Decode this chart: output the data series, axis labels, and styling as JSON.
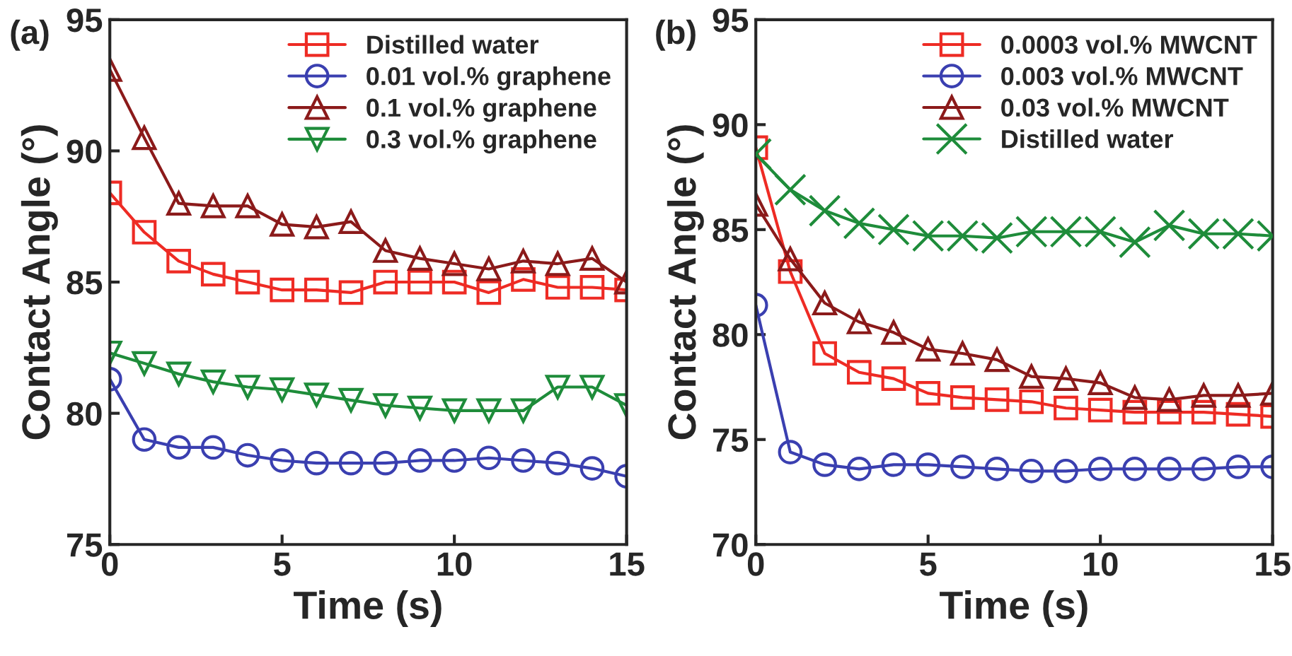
{
  "chart_data": [
    {
      "type": "line",
      "title": "(a)",
      "xlabel": "Time (s)",
      "ylabel": "Contact Angle (°)",
      "x": [
        0,
        1,
        2,
        3,
        4,
        5,
        6,
        7,
        8,
        9,
        10,
        11,
        12,
        13,
        14,
        15
      ],
      "xlim": [
        0,
        15
      ],
      "xticks": [
        0,
        5,
        10,
        15
      ],
      "ylim": [
        75,
        95
      ],
      "yticks": [
        75,
        80,
        85,
        90,
        95
      ],
      "legend": "top right",
      "grid": false,
      "series": [
        {
          "name": "Distilled water",
          "color": "#ee2b24",
          "marker": "square",
          "values": [
            88.4,
            86.9,
            85.8,
            85.3,
            85.0,
            84.7,
            84.7,
            84.6,
            85.0,
            85.0,
            85.0,
            84.6,
            85.1,
            84.8,
            84.8,
            84.7
          ]
        },
        {
          "name": "0.01 vol.% graphene",
          "color": "#3a3fb0",
          "marker": "circle",
          "values": [
            81.3,
            79.0,
            78.7,
            78.7,
            78.4,
            78.2,
            78.1,
            78.1,
            78.1,
            78.2,
            78.2,
            78.3,
            78.2,
            78.1,
            77.9,
            77.6
          ]
        },
        {
          "name": "0.1 vol.% graphene",
          "color": "#8b1a1a",
          "marker": "triangle",
          "values": [
            93.1,
            90.5,
            88.0,
            87.9,
            87.9,
            87.2,
            87.1,
            87.3,
            86.2,
            85.9,
            85.7,
            85.5,
            85.8,
            85.7,
            85.9,
            85.0
          ]
        },
        {
          "name": "0.3 vol.% graphene",
          "color": "#1e8c3a",
          "marker": "triangle_down",
          "values": [
            82.3,
            81.9,
            81.5,
            81.2,
            81.0,
            80.9,
            80.7,
            80.5,
            80.3,
            80.2,
            80.1,
            80.1,
            80.1,
            81.0,
            81.0,
            80.3
          ]
        }
      ]
    },
    {
      "type": "line",
      "title": "(b)",
      "xlabel": "Time (s)",
      "ylabel": "Contact Angle (°)",
      "x": [
        0,
        1,
        2,
        3,
        4,
        5,
        6,
        7,
        8,
        9,
        10,
        11,
        12,
        13,
        14,
        15
      ],
      "xlim": [
        0,
        15
      ],
      "xticks": [
        0,
        5,
        10,
        15
      ],
      "ylim": [
        70,
        95
      ],
      "yticks": [
        70,
        75,
        80,
        85,
        90,
        95
      ],
      "legend": "top right",
      "grid": false,
      "series": [
        {
          "name": "0.0003 vol.% MWCNT",
          "color": "#ee2b24",
          "marker": "square",
          "values": [
            88.9,
            83.0,
            79.1,
            78.2,
            77.9,
            77.2,
            77.0,
            76.9,
            76.8,
            76.5,
            76.4,
            76.3,
            76.3,
            76.3,
            76.2,
            76.1
          ]
        },
        {
          "name": "0.003 vol.% MWCNT",
          "color": "#3a3fb0",
          "marker": "circle",
          "values": [
            81.4,
            74.4,
            73.8,
            73.6,
            73.8,
            73.8,
            73.7,
            73.6,
            73.5,
            73.5,
            73.6,
            73.6,
            73.6,
            73.6,
            73.7,
            73.7
          ]
        },
        {
          "name": "0.03 vol.% MWCNT",
          "color": "#8b1a1a",
          "marker": "triangle",
          "values": [
            86.2,
            83.6,
            81.5,
            80.6,
            80.1,
            79.3,
            79.1,
            78.8,
            78.0,
            77.9,
            77.7,
            77.0,
            76.9,
            77.1,
            77.1,
            77.2
          ]
        },
        {
          "name": "Distilled water",
          "color": "#1e8c3a",
          "marker": "cross",
          "values": [
            88.6,
            86.9,
            85.9,
            85.3,
            85.0,
            84.7,
            84.7,
            84.6,
            84.9,
            84.9,
            84.9,
            84.4,
            85.2,
            84.8,
            84.8,
            84.7
          ]
        }
      ]
    }
  ]
}
